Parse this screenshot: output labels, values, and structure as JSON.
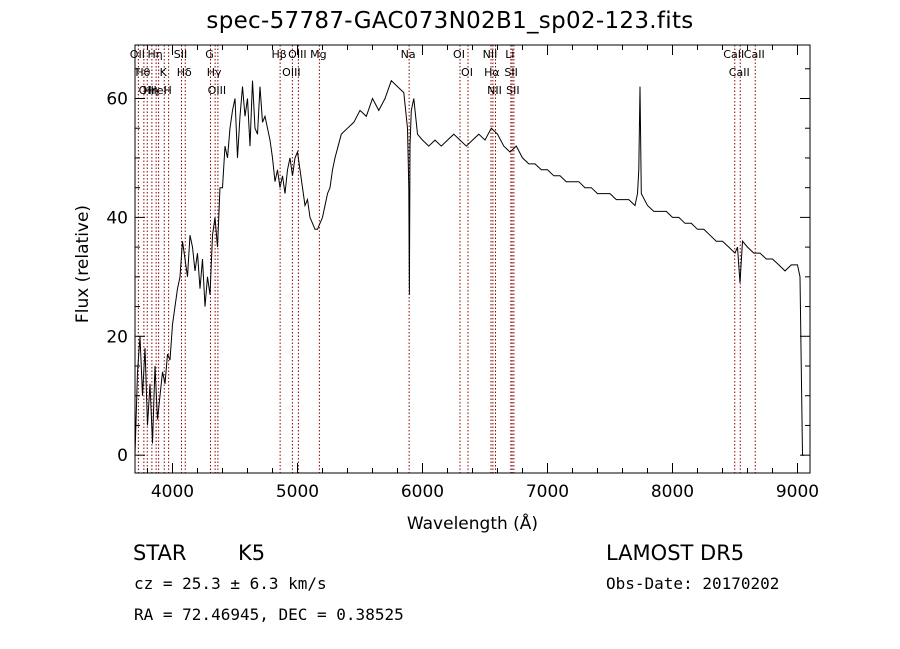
{
  "title": "spec-57787-GAC073N02B1_sp02-123.fits",
  "info": {
    "object_class": "STAR",
    "subclass": "K5",
    "survey": "LAMOST DR5",
    "redshift": "cz = 25.3 ± 6.3 km/s",
    "obs_date": "Obs-Date: 20170202",
    "coordinates": "RA =  72.46945, DEC =   0.38525"
  },
  "colors": {
    "spectrum": "#000000",
    "line_marker": "#8b0000",
    "axis": "#000000",
    "background": "#ffffff"
  },
  "chart_data": {
    "type": "line",
    "xlabel": "Wavelength (Å)",
    "ylabel": "Flux (relative)",
    "xlim": [
      3700,
      9100
    ],
    "ylim": [
      -3,
      69
    ],
    "xticks": [
      4000,
      5000,
      6000,
      7000,
      8000,
      9000
    ],
    "yticks": [
      0,
      20,
      40,
      60
    ],
    "grid": false,
    "series": [
      {
        "x": [
          3700,
          3720,
          3740,
          3760,
          3780,
          3800,
          3820,
          3840,
          3860,
          3880,
          3900,
          3920,
          3940,
          3960,
          3980,
          4000,
          4020,
          4040,
          4060,
          4080,
          4100,
          4120,
          4140,
          4160,
          4180,
          4200,
          4220,
          4240,
          4260,
          4280,
          4300,
          4320,
          4340,
          4360,
          4380,
          4400,
          4420,
          4440,
          4460,
          4480,
          4500,
          4520,
          4540,
          4560,
          4580,
          4600,
          4620,
          4640,
          4660,
          4680,
          4700,
          4720,
          4740,
          4760,
          4780,
          4800,
          4820,
          4840,
          4860,
          4880,
          4900,
          4920,
          4940,
          4960,
          4980,
          5000,
          5020,
          5040,
          5060,
          5080,
          5100,
          5120,
          5140,
          5160,
          5180,
          5200,
          5220,
          5240,
          5260,
          5280,
          5300,
          5350,
          5400,
          5450,
          5500,
          5550,
          5600,
          5650,
          5700,
          5750,
          5800,
          5850,
          5880,
          5890,
          5895,
          5900,
          5910,
          5930,
          5960,
          6000,
          6050,
          6100,
          6150,
          6200,
          6250,
          6300,
          6350,
          6400,
          6450,
          6500,
          6550,
          6600,
          6650,
          6700,
          6750,
          6800,
          6850,
          6900,
          6950,
          7000,
          7050,
          7100,
          7150,
          7200,
          7250,
          7300,
          7350,
          7400,
          7450,
          7500,
          7550,
          7600,
          7650,
          7700,
          7720,
          7730,
          7740,
          7750,
          7800,
          7850,
          7900,
          7950,
          8000,
          8050,
          8100,
          8150,
          8200,
          8250,
          8300,
          8350,
          8400,
          8450,
          8500,
          8520,
          8540,
          8560,
          8600,
          8650,
          8700,
          8750,
          8800,
          8850,
          8900,
          8950,
          9000,
          9020,
          9040,
          9050,
          9052
        ],
        "y": [
          0,
          14,
          20,
          10,
          18,
          5,
          12,
          2,
          15,
          6,
          10,
          14,
          12,
          17,
          16,
          22,
          25,
          28,
          30,
          36,
          33,
          30,
          37,
          35,
          31,
          34,
          28,
          33,
          25,
          30,
          27,
          37,
          40,
          35,
          45,
          45,
          52,
          50,
          55,
          58,
          60,
          50,
          57,
          62,
          57,
          60,
          52,
          63,
          55,
          54,
          62,
          56,
          57,
          55,
          53,
          50,
          46,
          48,
          45,
          47,
          44,
          48,
          50,
          47,
          50,
          51,
          48,
          45,
          42,
          43,
          40,
          39,
          38,
          38,
          39,
          40,
          42,
          44,
          45,
          48,
          50,
          54,
          55,
          56,
          58,
          57,
          60,
          58,
          60,
          63,
          62,
          61,
          55,
          45,
          27,
          52,
          58,
          60,
          54,
          53,
          52,
          53,
          52,
          53,
          54,
          53,
          52,
          53,
          54,
          53,
          55,
          54,
          52,
          51,
          52,
          50,
          49,
          49,
          48,
          48,
          47,
          47,
          46,
          46,
          46,
          45,
          45,
          44,
          44,
          44,
          43,
          43,
          43,
          42,
          44,
          48,
          62,
          44,
          42,
          41,
          41,
          41,
          40,
          40,
          39,
          39,
          38,
          38,
          37,
          36,
          36,
          35,
          34,
          35,
          29,
          36,
          35,
          34,
          34,
          33,
          33,
          32,
          31,
          32,
          32,
          30,
          0,
          0,
          0
        ]
      }
    ],
    "lines": [
      {
        "x": 3727,
        "label": "OII"
      },
      {
        "x": 3771,
        "label": "Hθ"
      },
      {
        "x": 3798,
        "label": "OII"
      },
      {
        "x": 3835,
        "label": "Hη"
      },
      {
        "x": 3869,
        "label": "Hη"
      },
      {
        "x": 3889,
        "label": "HeI"
      },
      {
        "x": 3934,
        "label": "K"
      },
      {
        "x": 3969,
        "label": "H"
      },
      {
        "x": 4072,
        "label": "SII"
      },
      {
        "x": 4102,
        "label": "Hδ"
      },
      {
        "x": 4304,
        "label": "G"
      },
      {
        "x": 4341,
        "label": "Hγ"
      },
      {
        "x": 4363,
        "label": "OIII"
      },
      {
        "x": 4861,
        "label": "Hβ"
      },
      {
        "x": 4959,
        "label": "OIII"
      },
      {
        "x": 5007,
        "label": "OIII"
      },
      {
        "x": 5175,
        "label": "Mg"
      },
      {
        "x": 5893,
        "label": "Na"
      },
      {
        "x": 6300,
        "label": "OI"
      },
      {
        "x": 6364,
        "label": "OI"
      },
      {
        "x": 6548,
        "label": "NII"
      },
      {
        "x": 6563,
        "label": "Hα"
      },
      {
        "x": 6584,
        "label": "NII"
      },
      {
        "x": 6707,
        "label": "Li"
      },
      {
        "x": 6717,
        "label": "SII"
      },
      {
        "x": 6731,
        "label": "SII"
      },
      {
        "x": 8498,
        "label": "CaII"
      },
      {
        "x": 8542,
        "label": "CaII"
      },
      {
        "x": 8662,
        "label": "CaII"
      }
    ]
  }
}
